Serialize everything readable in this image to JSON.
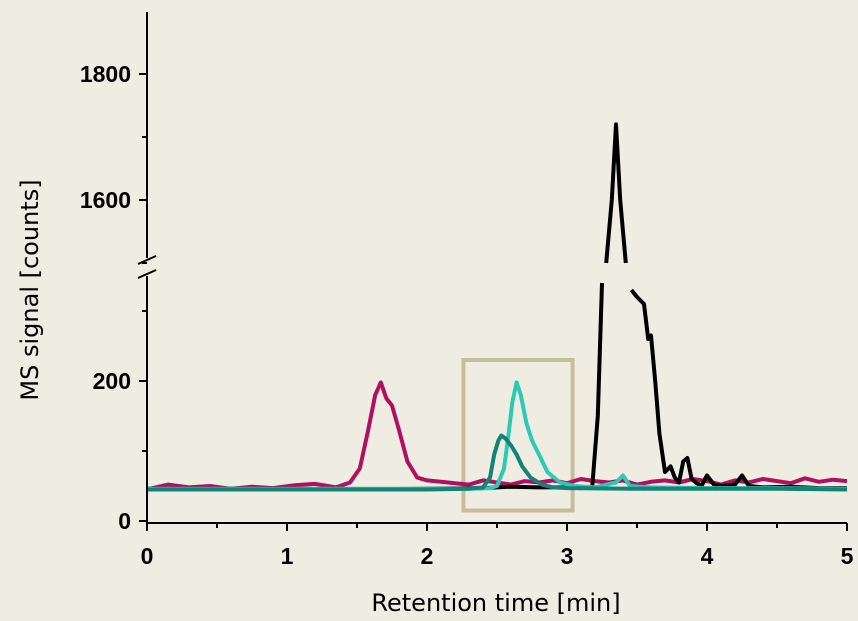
{
  "chart_data": {
    "type": "line",
    "title": "",
    "xlabel": "Retention time [min]",
    "ylabel": "MS signal [counts]",
    "xlim": [
      0,
      5
    ],
    "x_ticks": [
      "0",
      "1",
      "2",
      "3",
      "4",
      "5"
    ],
    "y_axis_break": true,
    "y_lower_range": [
      0,
      340
    ],
    "y_upper_range": [
      1500,
      1880
    ],
    "y_ticks": [
      "0",
      "200",
      "1600",
      "1800"
    ],
    "grid": false,
    "legend": "none",
    "highlight_box": {
      "x_range": [
        2.26,
        3.04
      ],
      "y_range": [
        15,
        230
      ]
    },
    "series": [
      {
        "color": "#b0105f",
        "x": [
          0.0,
          0.15,
          0.3,
          0.45,
          0.6,
          0.75,
          0.9,
          1.05,
          1.2,
          1.35,
          1.45,
          1.52,
          1.58,
          1.63,
          1.67,
          1.71,
          1.75,
          1.8,
          1.86,
          1.93,
          2.0,
          2.1,
          2.2,
          2.3,
          2.4,
          2.5,
          2.6,
          2.7,
          2.8,
          2.9,
          3.0,
          3.1,
          3.2,
          3.3,
          3.4,
          3.5,
          3.6,
          3.7,
          3.8,
          3.9,
          4.0,
          4.1,
          4.2,
          4.3,
          4.4,
          4.5,
          4.6,
          4.7,
          4.8,
          4.9,
          5.0
        ],
        "y": [
          45,
          52,
          48,
          50,
          46,
          49,
          47,
          51,
          53,
          48,
          55,
          75,
          130,
          180,
          198,
          175,
          165,
          130,
          85,
          62,
          58,
          56,
          54,
          52,
          58,
          55,
          52,
          57,
          55,
          58,
          54,
          60,
          57,
          55,
          58,
          52,
          56,
          58,
          55,
          60,
          57,
          52,
          58,
          55,
          60,
          57,
          54,
          61,
          56,
          59,
          57
        ]
      },
      {
        "color": "#000000",
        "x": [
          0.0,
          0.5,
          1.0,
          1.5,
          2.0,
          2.4,
          2.6,
          2.8,
          3.0,
          3.1,
          3.18,
          3.22,
          3.25,
          3.28,
          3.32,
          3.35,
          3.38,
          3.42,
          3.46,
          3.5,
          3.55,
          3.58,
          3.6,
          3.63,
          3.66,
          3.7,
          3.74,
          3.77,
          3.8,
          3.83,
          3.86,
          3.89,
          3.92,
          3.96,
          4.0,
          4.05,
          4.1,
          4.2,
          4.25,
          4.3,
          4.4,
          4.6,
          4.8,
          5.0
        ],
        "y": [
          46,
          46,
          46,
          45,
          46,
          47,
          49,
          48,
          48,
          47,
          48,
          150,
          340,
          1500,
          1600,
          1720,
          1600,
          1500,
          330,
          320,
          310,
          260,
          265,
          200,
          125,
          70,
          78,
          62,
          55,
          85,
          90,
          60,
          55,
          50,
          65,
          52,
          50,
          52,
          65,
          50,
          48,
          49,
          47,
          47
        ]
      },
      {
        "color": "#2dc9b5",
        "x": [
          0.0,
          0.5,
          1.0,
          1.5,
          2.0,
          2.3,
          2.45,
          2.5,
          2.55,
          2.58,
          2.61,
          2.64,
          2.67,
          2.71,
          2.75,
          2.8,
          2.86,
          2.95,
          3.05,
          3.2,
          3.35,
          3.4,
          3.45,
          3.6,
          4.0,
          4.5,
          5.0
        ],
        "y": [
          46,
          46,
          46,
          46,
          46,
          46,
          47,
          50,
          75,
          120,
          170,
          198,
          180,
          140,
          115,
          95,
          70,
          55,
          50,
          48,
          55,
          65,
          50,
          48,
          47,
          47,
          46
        ]
      },
      {
        "color": "#138277",
        "x": [
          0.0,
          0.5,
          1.0,
          1.5,
          2.0,
          2.3,
          2.4,
          2.45,
          2.48,
          2.51,
          2.53,
          2.56,
          2.6,
          2.64,
          2.68,
          2.74,
          2.82,
          2.9,
          3.0,
          3.5,
          4.0,
          4.5,
          5.0
        ],
        "y": [
          45,
          45,
          45,
          45,
          45,
          46,
          48,
          62,
          95,
          115,
          122,
          118,
          108,
          95,
          78,
          62,
          52,
          48,
          47,
          46,
          46,
          46,
          45
        ]
      }
    ]
  }
}
